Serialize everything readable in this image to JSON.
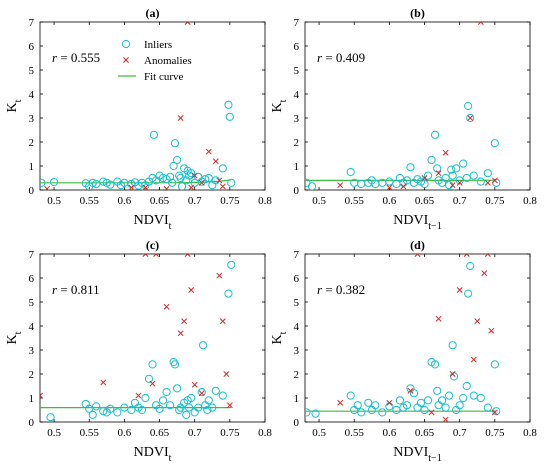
{
  "colors": {
    "inlier": "#17bfcf",
    "anomaly": "#d62728",
    "fit": "#3cbf3c"
  },
  "legend": {
    "inliers": "Inliers",
    "anomalies": "Anomalies",
    "fit": "Fit curve"
  },
  "chart_data": [
    {
      "panel": "(a)",
      "type": "scatter",
      "r_text": "0.555",
      "xlabel_main": "NDVI",
      "xlabel_sub": "t",
      "ylabel_main": "K",
      "ylabel_sub": "t",
      "xlim": [
        0.48,
        0.8
      ],
      "ylim": [
        0,
        7
      ],
      "xticks": [
        "0.5",
        "0.55",
        "0.6",
        "0.65",
        "0.7",
        "0.75",
        "0.8"
      ],
      "yticks": [
        "0",
        "1",
        "2",
        "3",
        "4",
        "5",
        "6",
        "7"
      ],
      "legend": true,
      "inliers": [
        [
          0.482,
          0.3
        ],
        [
          0.5,
          0.33
        ],
        [
          0.545,
          0.28
        ],
        [
          0.55,
          0.15
        ],
        [
          0.555,
          0.3
        ],
        [
          0.56,
          0.25
        ],
        [
          0.57,
          0.35
        ],
        [
          0.575,
          0.3
        ],
        [
          0.58,
          0.22
        ],
        [
          0.59,
          0.35
        ],
        [
          0.595,
          0.2
        ],
        [
          0.6,
          0.3
        ],
        [
          0.61,
          0.25
        ],
        [
          0.615,
          0.32
        ],
        [
          0.62,
          0.18
        ],
        [
          0.625,
          0.3
        ],
        [
          0.63,
          0.2
        ],
        [
          0.635,
          0.35
        ],
        [
          0.64,
          0.5
        ],
        [
          0.642,
          2.3
        ],
        [
          0.645,
          0.4
        ],
        [
          0.65,
          0.6
        ],
        [
          0.655,
          0.5
        ],
        [
          0.66,
          0.45
        ],
        [
          0.665,
          0.55
        ],
        [
          0.668,
          0.3
        ],
        [
          0.67,
          1.0
        ],
        [
          0.672,
          1.95
        ],
        [
          0.675,
          1.25
        ],
        [
          0.678,
          0.6
        ],
        [
          0.68,
          0.5
        ],
        [
          0.682,
          0.15
        ],
        [
          0.685,
          0.9
        ],
        [
          0.688,
          0.4
        ],
        [
          0.69,
          0.8
        ],
        [
          0.692,
          0.6
        ],
        [
          0.695,
          0.7
        ],
        [
          0.7,
          0.3
        ],
        [
          0.705,
          0.55
        ],
        [
          0.71,
          0.35
        ],
        [
          0.715,
          0.45
        ],
        [
          0.72,
          0.5
        ],
        [
          0.725,
          0.2
        ],
        [
          0.73,
          0.4
        ],
        [
          0.74,
          0.9
        ],
        [
          0.748,
          3.55
        ],
        [
          0.75,
          3.05
        ],
        [
          0.752,
          0.3
        ]
      ],
      "anomalies": [
        [
          0.49,
          0.05
        ],
        [
          0.61,
          0.1
        ],
        [
          0.63,
          0.1
        ],
        [
          0.66,
          0.05
        ],
        [
          0.68,
          3.0
        ],
        [
          0.69,
          7.0
        ],
        [
          0.695,
          0.1
        ],
        [
          0.7,
          0.6
        ],
        [
          0.71,
          0.3
        ],
        [
          0.72,
          1.6
        ],
        [
          0.73,
          1.2
        ],
        [
          0.735,
          0.4
        ],
        [
          0.74,
          0.15
        ]
      ],
      "fit": {
        "a": 0.3,
        "k": 0.12,
        "c": 0.75
      }
    },
    {
      "panel": "(b)",
      "type": "scatter",
      "r_text": "0.409",
      "xlabel_main": "NDVI",
      "xlabel_sub": "t−1",
      "ylabel_main": "K",
      "ylabel_sub": "t",
      "xlim": [
        0.48,
        0.8
      ],
      "ylim": [
        0,
        7
      ],
      "xticks": [
        "0.5",
        "0.55",
        "0.6",
        "0.65",
        "0.7",
        "0.75",
        "0.8"
      ],
      "yticks": [
        "0",
        "1",
        "2",
        "3",
        "4",
        "5",
        "6",
        "7"
      ],
      "legend": false,
      "inliers": [
        [
          0.482,
          0.3
        ],
        [
          0.49,
          0.15
        ],
        [
          0.545,
          0.75
        ],
        [
          0.55,
          0.3
        ],
        [
          0.56,
          0.25
        ],
        [
          0.57,
          0.3
        ],
        [
          0.575,
          0.4
        ],
        [
          0.58,
          0.25
        ],
        [
          0.59,
          0.3
        ],
        [
          0.6,
          0.35
        ],
        [
          0.61,
          0.25
        ],
        [
          0.615,
          0.5
        ],
        [
          0.62,
          0.3
        ],
        [
          0.625,
          0.4
        ],
        [
          0.63,
          0.95
        ],
        [
          0.635,
          0.3
        ],
        [
          0.64,
          0.45
        ],
        [
          0.645,
          0.35
        ],
        [
          0.65,
          0.25
        ],
        [
          0.655,
          0.6
        ],
        [
          0.66,
          1.25
        ],
        [
          0.665,
          2.3
        ],
        [
          0.668,
          0.9
        ],
        [
          0.67,
          0.4
        ],
        [
          0.675,
          0.3
        ],
        [
          0.68,
          0.5
        ],
        [
          0.685,
          0.2
        ],
        [
          0.688,
          0.85
        ],
        [
          0.69,
          0.6
        ],
        [
          0.695,
          0.9
        ],
        [
          0.7,
          0.4
        ],
        [
          0.705,
          1.1
        ],
        [
          0.71,
          0.5
        ],
        [
          0.712,
          3.5
        ],
        [
          0.715,
          3.0
        ],
        [
          0.72,
          0.6
        ],
        [
          0.73,
          0.35
        ],
        [
          0.74,
          0.7
        ],
        [
          0.75,
          1.95
        ],
        [
          0.752,
          0.3
        ]
      ],
      "anomalies": [
        [
          0.53,
          0.2
        ],
        [
          0.6,
          0.1
        ],
        [
          0.62,
          0.15
        ],
        [
          0.65,
          0.5
        ],
        [
          0.67,
          0.7
        ],
        [
          0.68,
          1.55
        ],
        [
          0.69,
          0.2
        ],
        [
          0.7,
          0.3
        ],
        [
          0.715,
          3.0
        ],
        [
          0.73,
          7.0
        ],
        [
          0.74,
          0.3
        ],
        [
          0.75,
          0.4
        ]
      ],
      "fit": {
        "a": 0.4,
        "k": 0.08,
        "c": 0.8
      }
    },
    {
      "panel": "(c)",
      "type": "scatter",
      "r_text": "0.811",
      "xlabel_main": "NDVI",
      "xlabel_sub": "t",
      "ylabel_main": "K",
      "ylabel_sub": "t",
      "xlim": [
        0.48,
        0.8
      ],
      "ylim": [
        0,
        7
      ],
      "xticks": [
        "0.5",
        "0.55",
        "0.6",
        "0.65",
        "0.7",
        "0.75",
        "0.8"
      ],
      "yticks": [
        "0",
        "1",
        "2",
        "3",
        "4",
        "5",
        "6",
        "7"
      ],
      "legend": false,
      "inliers": [
        [
          0.495,
          0.2
        ],
        [
          0.545,
          0.75
        ],
        [
          0.55,
          0.55
        ],
        [
          0.555,
          0.3
        ],
        [
          0.56,
          0.65
        ],
        [
          0.57,
          0.45
        ],
        [
          0.575,
          0.4
        ],
        [
          0.58,
          0.55
        ],
        [
          0.59,
          0.4
        ],
        [
          0.6,
          0.6
        ],
        [
          0.61,
          0.5
        ],
        [
          0.615,
          0.8
        ],
        [
          0.62,
          0.6
        ],
        [
          0.625,
          0.5
        ],
        [
          0.63,
          1.0
        ],
        [
          0.635,
          1.8
        ],
        [
          0.64,
          2.4
        ],
        [
          0.645,
          0.7
        ],
        [
          0.65,
          0.55
        ],
        [
          0.655,
          0.9
        ],
        [
          0.66,
          1.25
        ],
        [
          0.665,
          0.7
        ],
        [
          0.67,
          2.5
        ],
        [
          0.672,
          2.4
        ],
        [
          0.675,
          1.4
        ],
        [
          0.678,
          0.5
        ],
        [
          0.68,
          0.6
        ],
        [
          0.685,
          0.8
        ],
        [
          0.688,
          0.3
        ],
        [
          0.69,
          0.9
        ],
        [
          0.692,
          0.6
        ],
        [
          0.695,
          1.0
        ],
        [
          0.7,
          0.4
        ],
        [
          0.705,
          0.6
        ],
        [
          0.71,
          1.25
        ],
        [
          0.712,
          3.2
        ],
        [
          0.715,
          0.7
        ],
        [
          0.718,
          0.5
        ],
        [
          0.72,
          0.9
        ],
        [
          0.725,
          0.6
        ],
        [
          0.73,
          1.3
        ],
        [
          0.74,
          1.1
        ],
        [
          0.748,
          5.35
        ],
        [
          0.752,
          6.55
        ]
      ],
      "anomalies": [
        [
          0.48,
          1.1
        ],
        [
          0.57,
          1.65
        ],
        [
          0.62,
          1.1
        ],
        [
          0.63,
          7.0
        ],
        [
          0.64,
          1.6
        ],
        [
          0.645,
          7.0
        ],
        [
          0.66,
          4.8
        ],
        [
          0.68,
          3.7
        ],
        [
          0.685,
          4.2
        ],
        [
          0.69,
          7.0
        ],
        [
          0.695,
          5.5
        ],
        [
          0.7,
          1.55
        ],
        [
          0.71,
          1.2
        ],
        [
          0.735,
          6.1
        ],
        [
          0.74,
          4.2
        ],
        [
          0.745,
          2.0
        ],
        [
          0.75,
          0.7
        ]
      ],
      "fit": {
        "a": 0.6,
        "k": 0.015,
        "c": 0.78
      }
    },
    {
      "panel": "(d)",
      "type": "scatter",
      "r_text": "0.382",
      "xlabel_main": "NDVI",
      "xlabel_sub": "t−1",
      "ylabel_main": "K",
      "ylabel_sub": "t",
      "xlim": [
        0.48,
        0.8
      ],
      "ylim": [
        0,
        7
      ],
      "xticks": [
        "0.5",
        "0.55",
        "0.6",
        "0.65",
        "0.7",
        "0.75",
        "0.8"
      ],
      "yticks": [
        "0",
        "1",
        "2",
        "3",
        "4",
        "5",
        "6",
        "7"
      ],
      "legend": false,
      "inliers": [
        [
          0.482,
          0.4
        ],
        [
          0.495,
          0.35
        ],
        [
          0.545,
          1.1
        ],
        [
          0.55,
          0.5
        ],
        [
          0.555,
          0.7
        ],
        [
          0.56,
          0.4
        ],
        [
          0.57,
          0.8
        ],
        [
          0.575,
          0.5
        ],
        [
          0.58,
          0.7
        ],
        [
          0.59,
          0.4
        ],
        [
          0.6,
          0.65
        ],
        [
          0.61,
          0.5
        ],
        [
          0.615,
          0.9
        ],
        [
          0.62,
          0.6
        ],
        [
          0.625,
          0.7
        ],
        [
          0.63,
          1.4
        ],
        [
          0.635,
          1.2
        ],
        [
          0.64,
          0.6
        ],
        [
          0.645,
          0.8
        ],
        [
          0.65,
          0.5
        ],
        [
          0.655,
          0.9
        ],
        [
          0.66,
          2.5
        ],
        [
          0.665,
          2.4
        ],
        [
          0.668,
          1.3
        ],
        [
          0.67,
          0.7
        ],
        [
          0.675,
          0.9
        ],
        [
          0.68,
          0.6
        ],
        [
          0.685,
          1.1
        ],
        [
          0.69,
          3.2
        ],
        [
          0.692,
          1.9
        ],
        [
          0.695,
          0.5
        ],
        [
          0.7,
          0.7
        ],
        [
          0.705,
          1.0
        ],
        [
          0.71,
          1.5
        ],
        [
          0.712,
          5.35
        ],
        [
          0.715,
          6.5
        ],
        [
          0.72,
          1.1
        ],
        [
          0.73,
          1.0
        ],
        [
          0.74,
          0.6
        ],
        [
          0.75,
          2.4
        ],
        [
          0.752,
          0.45
        ]
      ],
      "anomalies": [
        [
          0.53,
          0.8
        ],
        [
          0.6,
          0.8
        ],
        [
          0.63,
          1.3
        ],
        [
          0.64,
          7.0
        ],
        [
          0.66,
          0.4
        ],
        [
          0.67,
          4.3
        ],
        [
          0.68,
          0.1
        ],
        [
          0.69,
          2.0
        ],
        [
          0.7,
          5.5
        ],
        [
          0.71,
          7.0
        ],
        [
          0.72,
          2.6
        ],
        [
          0.725,
          4.2
        ],
        [
          0.735,
          6.2
        ],
        [
          0.74,
          7.0
        ],
        [
          0.745,
          3.8
        ],
        [
          0.75,
          0.4
        ]
      ],
      "fit": {
        "a": 0.45,
        "k": 0.06,
        "c": 0.82
      }
    }
  ]
}
